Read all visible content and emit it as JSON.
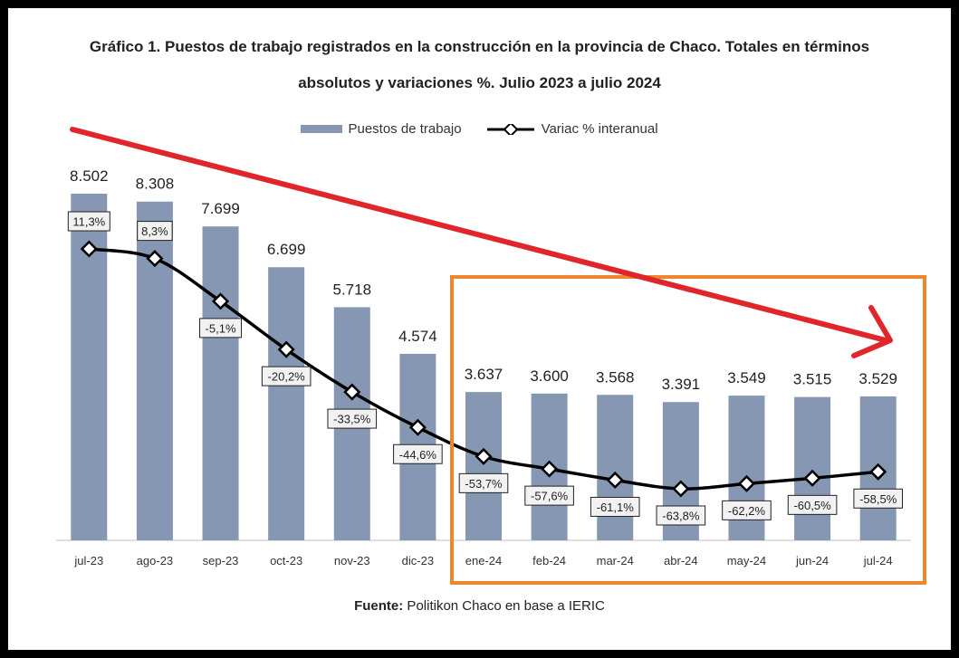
{
  "chart_data": {
    "type": "bar",
    "title_line1": "Gráfico 1. Puestos de trabajo registrados en la construcción en la provincia de Chaco. Totales en términos",
    "title_line2": "absolutos y variaciones %. Julio 2023 a julio 2024",
    "categories": [
      "jul-23",
      "ago-23",
      "sep-23",
      "oct-23",
      "nov-23",
      "dic-23",
      "ene-24",
      "feb-24",
      "mar-24",
      "abr-24",
      "may-24",
      "jun-24",
      "jul-24"
    ],
    "series": [
      {
        "name": "Puestos de trabajo",
        "type": "bar",
        "values": [
          8502,
          8308,
          7699,
          6699,
          5718,
          4574,
          3637,
          3600,
          3568,
          3391,
          3549,
          3515,
          3529
        ],
        "labels": [
          "8.502",
          "8.308",
          "7.699",
          "6.699",
          "5.718",
          "4.574",
          "3.637",
          "3.600",
          "3.568",
          "3.391",
          "3.549",
          "3.515",
          "3.529"
        ],
        "color": "#8597b2"
      },
      {
        "name": "Variac % interanual",
        "type": "line",
        "values": [
          11.3,
          8.3,
          -5.1,
          -20.2,
          -33.5,
          -44.6,
          -53.7,
          -57.6,
          -61.1,
          -63.8,
          -62.2,
          -60.5,
          -58.5
        ],
        "labels": [
          "11,3%",
          "8,3%",
          "-5,1%",
          "-20,2%",
          "-33,5%",
          "-44,6%",
          "-53,7%",
          "-57,6%",
          "-61,1%",
          "-63,8%",
          "-62,2%",
          "-60,5%",
          "-58,5%"
        ],
        "color": "#000000"
      }
    ],
    "legend_placement": "top-center",
    "grid": false,
    "source_label": "Fuente:",
    "source_text": " Politikon Chaco en base a IERIC",
    "annotations": {
      "trend_arrow_color": "#e0262b",
      "highlight_box_color": "#f0862c",
      "highlight_range": [
        "ene-24",
        "jul-24"
      ]
    }
  }
}
